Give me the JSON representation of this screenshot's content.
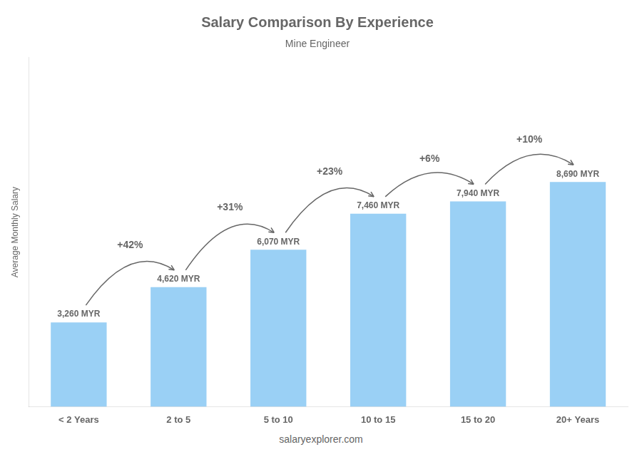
{
  "chart_data": {
    "type": "bar",
    "title": "Salary Comparison By Experience",
    "subtitle": "Mine Engineer",
    "categories": [
      "< 2 Years",
      "2 to 5",
      "5 to 10",
      "10 to 15",
      "15 to 20",
      "20+ Years"
    ],
    "values": [
      3260,
      4620,
      6070,
      7460,
      7940,
      8690
    ],
    "value_labels": [
      "3,260 MYR",
      "4,620 MYR",
      "6,070 MYR",
      "7,460 MYR",
      "7,940 MYR",
      "8,690 MYR"
    ],
    "data_labels": true,
    "annotations": [
      "+42%",
      "+31%",
      "+23%",
      "+6%",
      "+10%"
    ],
    "ylabel": "Average Monthly Salary",
    "footer": "salaryexplorer.com",
    "ylim": [
      0,
      13500
    ],
    "tick_labels": "x",
    "grid": false
  }
}
